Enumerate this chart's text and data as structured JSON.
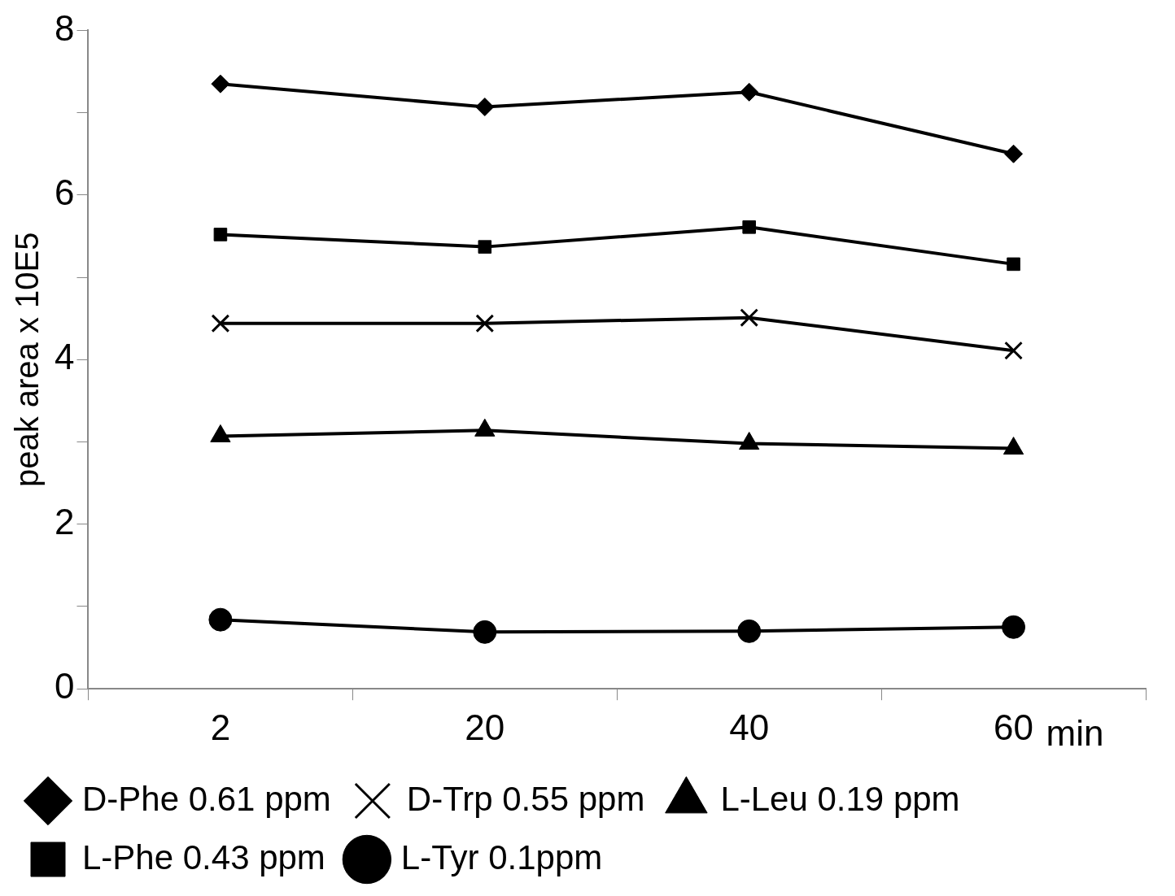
{
  "chart_data": {
    "type": "line",
    "ylabel": "peak area x 10E5",
    "xlabel": "min",
    "categories": [
      "2",
      "20",
      "40",
      "60"
    ],
    "series": [
      {
        "name": "D-Phe 0.61 ppm",
        "color": "#000000",
        "marker": "diamond",
        "values": [
          7.35,
          7.07,
          7.25,
          6.5
        ]
      },
      {
        "name": "D-Trp 0.55 ppm",
        "color": "#000000",
        "marker": "cross",
        "values": [
          4.44,
          4.44,
          4.51,
          4.11
        ]
      },
      {
        "name": "L-Leu 0.19 ppm",
        "color": "#000000",
        "marker": "triangle",
        "values": [
          3.07,
          3.14,
          2.98,
          2.92
        ]
      },
      {
        "name": "L-Phe 0.43 ppm",
        "color": "#000000",
        "marker": "square",
        "values": [
          5.52,
          5.37,
          5.61,
          5.16
        ]
      },
      {
        "name": "L-Tyr 0.1ppm",
        "color": "#000000",
        "marker": "circle",
        "values": [
          0.84,
          0.69,
          0.7,
          0.75
        ]
      }
    ],
    "ylim": [
      0,
      8
    ],
    "yticks": [
      0,
      {
        "value": 1,
        "label": null
      },
      2,
      {
        "value": 3,
        "label": null
      },
      4,
      {
        "value": 5,
        "label": null
      },
      6,
      {
        "value": 7,
        "label": null
      },
      8
    ],
    "grid": false,
    "legend": "bottom",
    "line_style": "solid"
  }
}
